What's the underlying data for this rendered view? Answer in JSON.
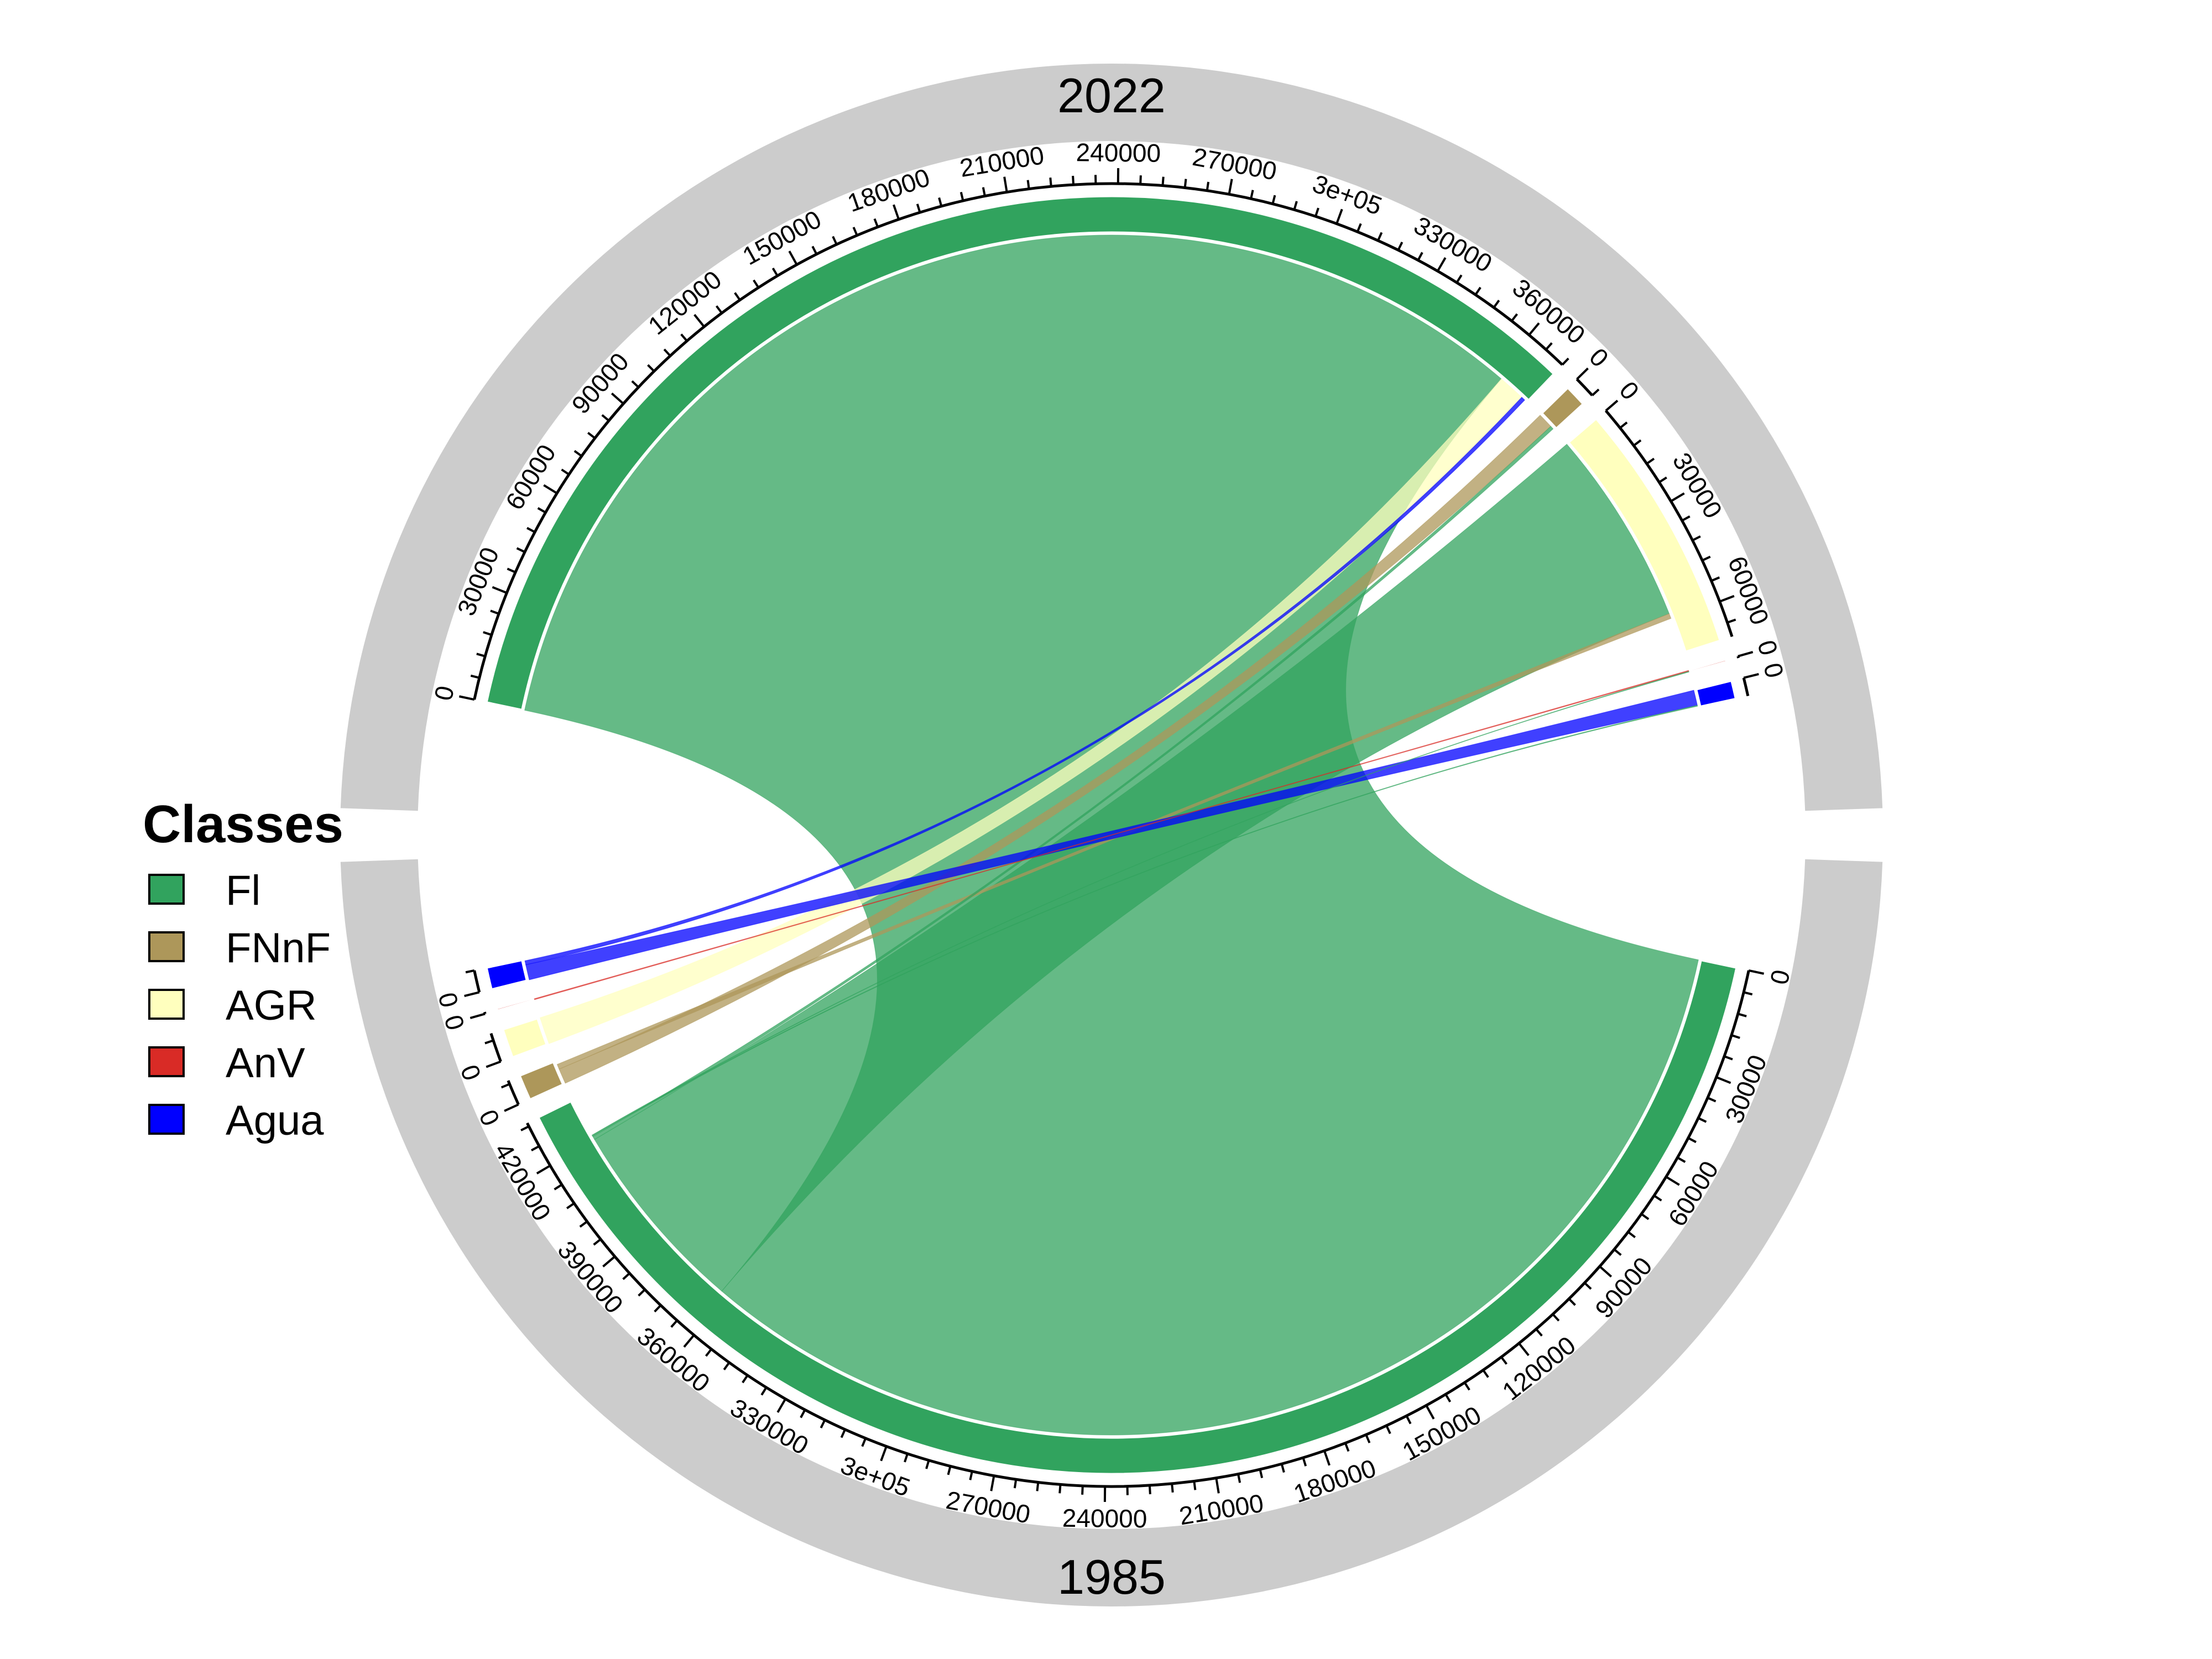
{
  "chart_data": {
    "type": "chord",
    "groups": [
      {
        "label": "2022",
        "sectors": [
          {
            "code": "Fl",
            "total": 372000
          },
          {
            "code": "FNnF",
            "total": 6000
          },
          {
            "code": "AGR",
            "total": 70000
          },
          {
            "code": "AnV",
            "total": 500
          },
          {
            "code": "Agua",
            "total": 5000
          }
        ]
      },
      {
        "label": "1985",
        "sectors": [
          {
            "code": "Fl",
            "total": 433000
          },
          {
            "code": "FNnF",
            "total": 7000
          },
          {
            "code": "AGR",
            "total": 8000
          },
          {
            "code": "AnV",
            "total": 500
          },
          {
            "code": "Agua",
            "total": 6000
          }
        ]
      }
    ],
    "ticks": {
      "2022": {
        "Fl": [
          "0",
          "30000",
          "60000",
          "90000",
          "120000",
          "150000",
          "180000",
          "210000",
          "240000",
          "270000",
          "3e+05",
          "330000",
          "360000"
        ],
        "FNnF": [
          "0"
        ],
        "AGR": [
          "0",
          "30000",
          "60000"
        ],
        "AnV": [
          "0"
        ],
        "Agua": [
          "0"
        ]
      },
      "1985": {
        "Fl": [
          "0",
          "30000",
          "60000",
          "90000",
          "120000",
          "150000",
          "180000",
          "210000",
          "240000",
          "270000",
          "3e+05",
          "330000",
          "360000",
          "390000",
          "420000"
        ],
        "FNnF": [
          "0"
        ],
        "AGR": [
          "0"
        ],
        "AnV": [
          "0"
        ],
        "Agua": [
          "0"
        ]
      }
    },
    "flows": [
      {
        "from": "Fl",
        "to": "Fl",
        "value": 362000
      },
      {
        "from": "FNnF",
        "to": "FNnF",
        "value": 4500
      },
      {
        "from": "AGR",
        "to": "Fl",
        "value": 8000
      },
      {
        "from": "Fl",
        "to": "AGR",
        "value": 58000
      },
      {
        "from": "FNnF",
        "to": "AGR",
        "value": 1500
      },
      {
        "from": "Fl",
        "to": "FNnF",
        "value": 1000
      },
      {
        "from": "Agua",
        "to": "Agua",
        "value": 4500
      },
      {
        "from": "Fl",
        "to": "Agua",
        "value": 300
      },
      {
        "from": "Agua",
        "to": "Fl",
        "value": 1200
      },
      {
        "from": "AnV",
        "to": "AnV",
        "value": 300
      },
      {
        "from": "Fl",
        "to": "AnV",
        "value": 200
      }
    ],
    "legend": {
      "title": "Classes",
      "placement": "left",
      "items": [
        {
          "code": "Fl",
          "label": "Fl",
          "color": "#31A35E"
        },
        {
          "code": "FNnF",
          "label": "FNnF",
          "color": "#AD975A"
        },
        {
          "code": "AGR",
          "label": "AGR",
          "color": "#FFFFBE"
        },
        {
          "code": "AnV",
          "label": "AnV",
          "color": "#D92B26"
        },
        {
          "code": "Agua",
          "label": "Agua",
          "color": "#0000FF"
        }
      ]
    }
  }
}
